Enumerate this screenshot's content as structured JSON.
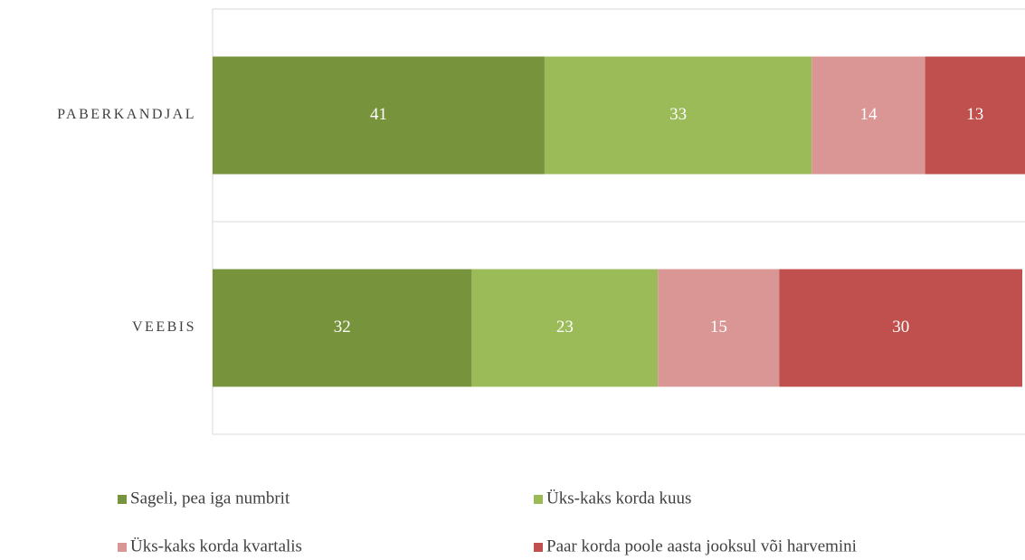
{
  "chart_data": {
    "type": "stacked-bar-horizontal",
    "categories": [
      "PABERKANDJAL",
      "VEEBIS"
    ],
    "series": [
      {
        "name": "Sageli, pea iga numbrit",
        "color": "#77933c",
        "values": [
          41,
          32
        ]
      },
      {
        "name": "Üks-kaks korda kuus",
        "color": "#9bbb59",
        "values": [
          33,
          23
        ]
      },
      {
        "name": "Üks-kaks korda kvartalis",
        "color": "#d99694",
        "values": [
          14,
          15
        ]
      },
      {
        "name": "Paar korda poole aasta jooksul või harvemini",
        "color": "#c0504d",
        "values": [
          13,
          30
        ]
      }
    ],
    "xlim": [
      0,
      100
    ],
    "legend": "bottom"
  }
}
